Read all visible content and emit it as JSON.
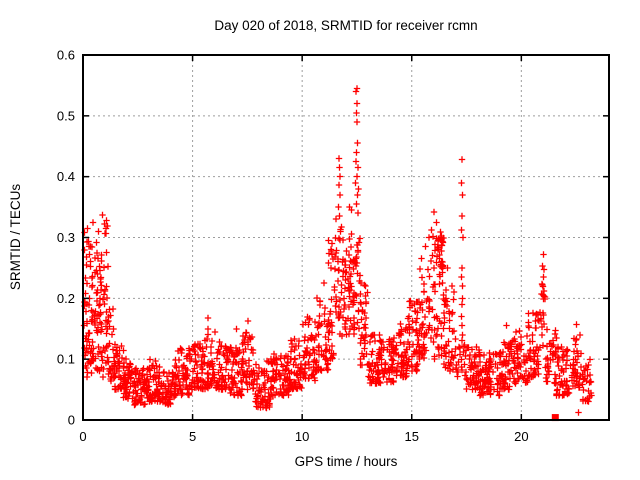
{
  "window": {
    "background_color": "#ffffff"
  },
  "chart_data": {
    "type": "scatter",
    "title": "Day 020 of 2018, SRMTID for receiver rcmn",
    "xlabel": "GPS time / hours",
    "ylabel": "SRMTID / TECUs",
    "xlim": [
      0,
      24
    ],
    "ylim": [
      0,
      0.6
    ],
    "xticks": [
      0,
      5,
      10,
      15,
      20
    ],
    "xtick_labels": [
      "0",
      "5",
      "10",
      "15",
      "20"
    ],
    "yticks": [
      0,
      0.1,
      0.2,
      0.3,
      0.4,
      0.5,
      0.6
    ],
    "ytick_labels": [
      "0",
      "0.1",
      "0.2",
      "0.3",
      "0.4",
      "0.5",
      "0.6"
    ],
    "grid": true,
    "grid_color": "#9e9e9e",
    "grid_dash": "2,3",
    "border_color": "#000000",
    "legend": "none",
    "seed": 20180120,
    "series": [
      {
        "name": "srmtid-plus-markers",
        "marker": "plus",
        "color": "#ff0000",
        "marker_halfsize": 3.2,
        "density_segments": [
          [
            0.05,
            0.35,
            0.07,
            0.31,
            45,
            1.2
          ],
          [
            0.35,
            0.65,
            0.07,
            0.3,
            40,
            1.3
          ],
          [
            0.65,
            0.95,
            0.07,
            0.28,
            40,
            1.4
          ],
          [
            0.95,
            1.15,
            0.09,
            0.335,
            25,
            1.0
          ],
          [
            1.15,
            1.45,
            0.06,
            0.21,
            30,
            1.6
          ],
          [
            1.45,
            1.85,
            0.05,
            0.13,
            40,
            1.5
          ],
          [
            1.85,
            2.3,
            0.035,
            0.1,
            45,
            1.4
          ],
          [
            2.3,
            3.0,
            0.025,
            0.085,
            70,
            1.3
          ],
          [
            3.0,
            3.55,
            0.03,
            0.1,
            55,
            1.4
          ],
          [
            3.55,
            4.2,
            0.025,
            0.08,
            60,
            1.3
          ],
          [
            4.2,
            4.85,
            0.04,
            0.12,
            60,
            1.4
          ],
          [
            4.85,
            5.45,
            0.05,
            0.125,
            55,
            1.4
          ],
          [
            5.45,
            6.05,
            0.05,
            0.15,
            55,
            1.5
          ],
          [
            6.05,
            6.65,
            0.05,
            0.13,
            55,
            1.4
          ],
          [
            6.65,
            7.25,
            0.04,
            0.125,
            55,
            1.4
          ],
          [
            7.25,
            7.85,
            0.05,
            0.145,
            55,
            1.4
          ],
          [
            7.85,
            8.6,
            0.02,
            0.1,
            65,
            1.3
          ],
          [
            8.6,
            9.4,
            0.04,
            0.11,
            70,
            1.3
          ],
          [
            9.4,
            10.0,
            0.05,
            0.135,
            55,
            1.4
          ],
          [
            10.0,
            10.6,
            0.065,
            0.17,
            55,
            1.4
          ],
          [
            10.6,
            11.2,
            0.08,
            0.21,
            55,
            1.4
          ],
          [
            11.2,
            11.6,
            0.1,
            0.3,
            40,
            1.3
          ],
          [
            11.6,
            12.0,
            0.12,
            0.33,
            40,
            1.2
          ],
          [
            12.0,
            12.4,
            0.14,
            0.32,
            45,
            1.2
          ],
          [
            12.4,
            12.65,
            0.15,
            0.3,
            20,
            1.1
          ],
          [
            12.65,
            13.0,
            0.09,
            0.24,
            35,
            1.5
          ],
          [
            13.0,
            13.6,
            0.06,
            0.14,
            55,
            1.4
          ],
          [
            13.6,
            14.2,
            0.06,
            0.135,
            55,
            1.4
          ],
          [
            14.2,
            14.8,
            0.07,
            0.16,
            55,
            1.4
          ],
          [
            14.8,
            15.3,
            0.08,
            0.2,
            50,
            1.4
          ],
          [
            15.3,
            15.85,
            0.1,
            0.27,
            50,
            1.3
          ],
          [
            15.85,
            16.45,
            0.1,
            0.31,
            55,
            1.15
          ],
          [
            16.15,
            16.45,
            0.24,
            0.3,
            16,
            1.0
          ],
          [
            16.45,
            16.95,
            0.08,
            0.22,
            45,
            1.4
          ],
          [
            16.95,
            17.45,
            0.07,
            0.14,
            22,
            1.3
          ],
          [
            17.45,
            18.1,
            0.05,
            0.12,
            55,
            1.4
          ],
          [
            18.1,
            19.0,
            0.04,
            0.11,
            75,
            1.3
          ],
          [
            19.0,
            19.6,
            0.05,
            0.13,
            55,
            1.4
          ],
          [
            19.6,
            20.3,
            0.06,
            0.15,
            60,
            1.4
          ],
          [
            20.3,
            20.85,
            0.07,
            0.18,
            50,
            1.4
          ],
          [
            20.85,
            21.1,
            0.12,
            0.23,
            18,
            1.0
          ],
          [
            21.1,
            21.6,
            0.06,
            0.15,
            40,
            1.5
          ],
          [
            21.6,
            22.3,
            0.04,
            0.12,
            55,
            1.4
          ],
          [
            22.3,
            22.8,
            0.05,
            0.14,
            45,
            1.4
          ],
          [
            22.8,
            23.2,
            0.03,
            0.1,
            28,
            1.3
          ]
        ],
        "peak_points": [
          [
            0.2,
            0.315
          ],
          [
            0.45,
            0.325
          ],
          [
            0.7,
            0.31
          ],
          [
            0.9,
            0.337
          ],
          [
            0.97,
            0.322
          ],
          [
            5.7,
            0.168
          ],
          [
            7.0,
            0.15
          ],
          [
            7.52,
            0.163
          ],
          [
            11.0,
            0.225
          ],
          [
            11.55,
            0.33
          ],
          [
            11.68,
            0.43
          ],
          [
            11.7,
            0.415
          ],
          [
            11.72,
            0.4
          ],
          [
            11.69,
            0.386
          ],
          [
            11.73,
            0.37
          ],
          [
            11.66,
            0.35
          ],
          [
            11.71,
            0.335
          ],
          [
            11.74,
            0.31
          ],
          [
            12.15,
            0.35
          ],
          [
            12.25,
            0.345
          ],
          [
            12.5,
            0.545
          ],
          [
            12.46,
            0.54
          ],
          [
            12.5,
            0.52
          ],
          [
            12.48,
            0.505
          ],
          [
            12.51,
            0.49
          ],
          [
            12.53,
            0.455
          ],
          [
            12.49,
            0.44
          ],
          [
            12.46,
            0.425
          ],
          [
            12.54,
            0.415
          ],
          [
            12.5,
            0.4
          ],
          [
            12.44,
            0.39
          ],
          [
            12.56,
            0.38
          ],
          [
            12.52,
            0.37
          ],
          [
            12.47,
            0.355
          ],
          [
            12.55,
            0.34
          ],
          [
            15.62,
            0.285
          ],
          [
            15.78,
            0.3
          ],
          [
            15.9,
            0.312
          ],
          [
            16.02,
            0.342
          ],
          [
            16.12,
            0.325
          ],
          [
            16.62,
            0.25
          ],
          [
            17.3,
            0.428
          ],
          [
            17.28,
            0.39
          ],
          [
            17.32,
            0.37
          ],
          [
            17.3,
            0.335
          ],
          [
            17.27,
            0.312
          ],
          [
            17.33,
            0.3
          ],
          [
            17.3,
            0.25
          ],
          [
            17.28,
            0.235
          ],
          [
            17.31,
            0.22
          ],
          [
            17.32,
            0.2
          ],
          [
            17.29,
            0.19
          ],
          [
            17.28,
            0.17
          ],
          [
            17.3,
            0.155
          ],
          [
            17.31,
            0.14
          ],
          [
            19.32,
            0.155
          ],
          [
            21.0,
            0.272
          ],
          [
            20.97,
            0.253
          ],
          [
            21.03,
            0.247
          ],
          [
            21.0,
            0.235
          ],
          [
            20.96,
            0.222
          ],
          [
            21.04,
            0.212
          ],
          [
            22.52,
            0.157
          ],
          [
            22.6,
            0.012
          ]
        ]
      },
      {
        "name": "srmtid-square-marker",
        "marker": "filled-square",
        "color": "#ff0000",
        "marker_size": 7,
        "points": [
          [
            21.55,
            0.004
          ]
        ]
      }
    ]
  }
}
